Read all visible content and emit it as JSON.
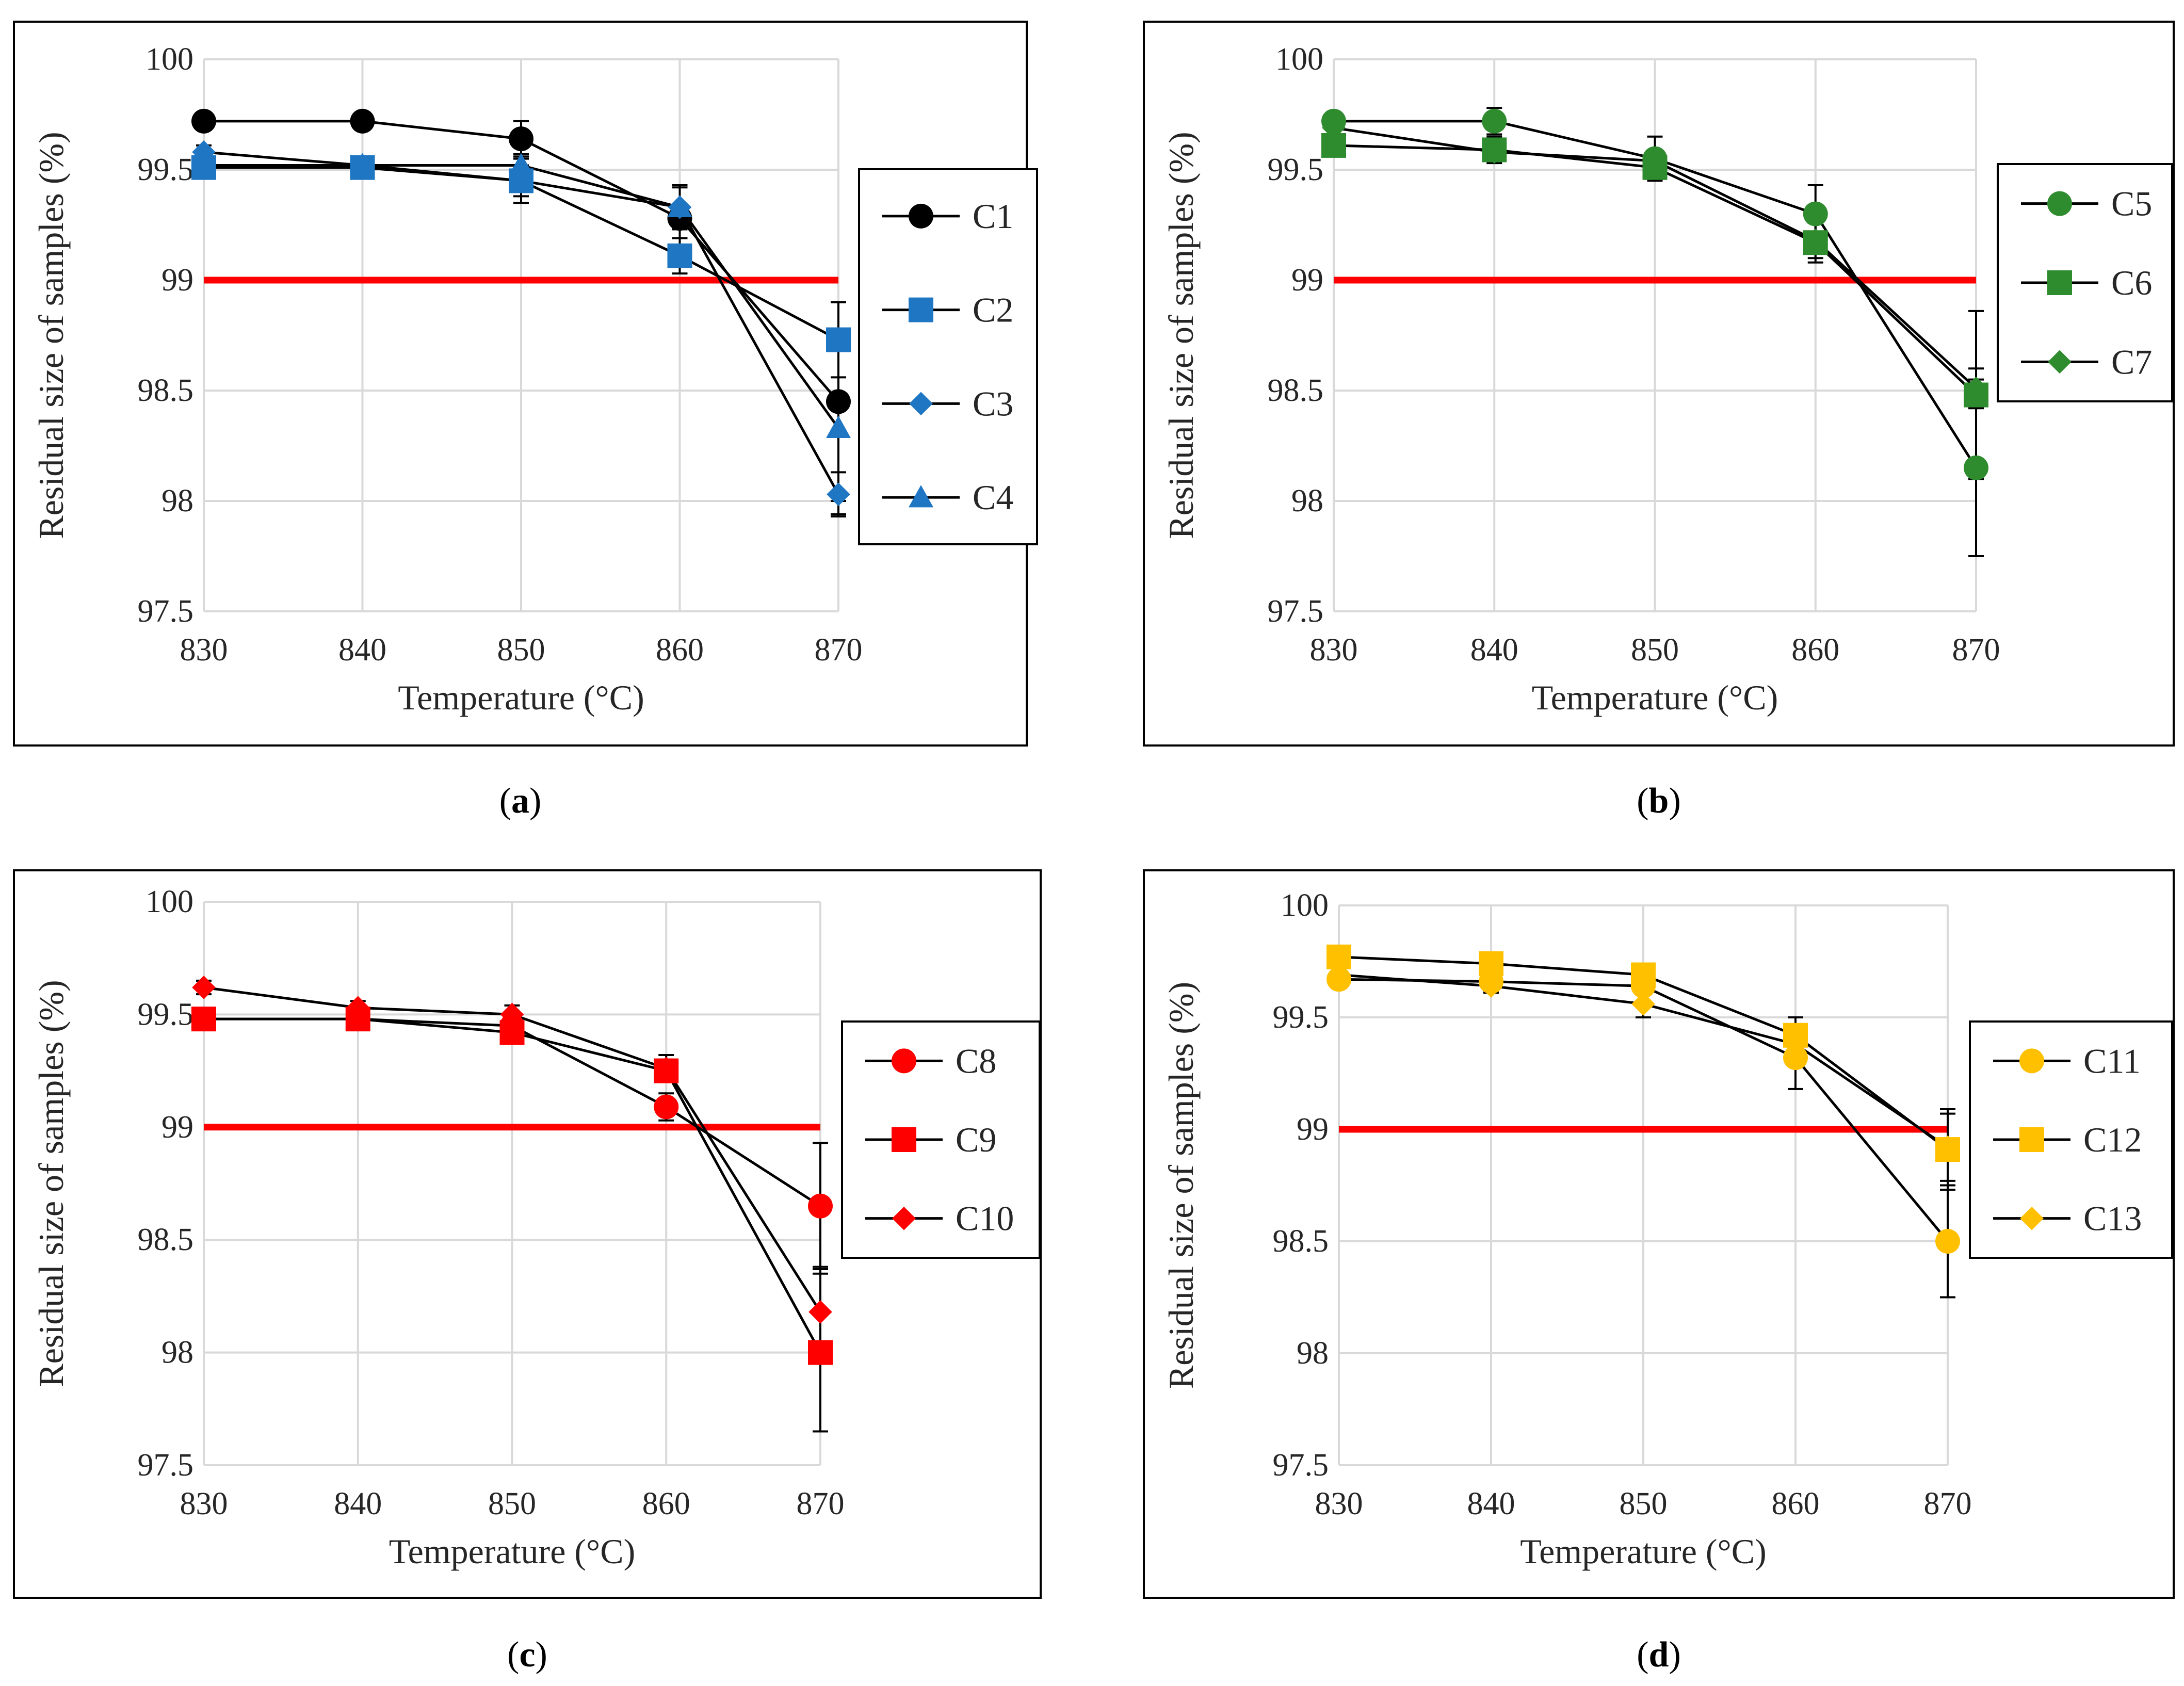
{
  "figure": {
    "panels": [
      {
        "caption_letter": "a",
        "chart_data": {
          "type": "line",
          "title": "",
          "xlabel": "Temperature (°C)",
          "ylabel": "Residual size of samples (%)",
          "x": [
            830,
            840,
            850,
            860,
            870
          ],
          "xticks": [
            "830",
            "840",
            "850",
            "860",
            "870"
          ],
          "ylim": [
            97.5,
            100
          ],
          "yticks": [
            "97.5",
            "98",
            "98.5",
            "99",
            "99.5",
            "100"
          ],
          "grid": true,
          "reference_line": {
            "y": 99,
            "color": "#ff0000"
          },
          "legend": "right",
          "series": [
            {
              "name": "C1",
              "marker": "circle",
              "color": "#000000",
              "values": [
                99.72,
                99.72,
                99.64,
                99.28,
                98.45
              ],
              "errors": [
                0.03,
                0.04,
                0.08,
                0.15,
                0.45
              ]
            },
            {
              "name": "C2",
              "marker": "square",
              "color": "#1f77c4",
              "values": [
                99.51,
                99.51,
                99.45,
                99.11,
                98.73
              ],
              "errors": [
                0.04,
                0.05,
                0.1,
                0.08,
                0.17
              ]
            },
            {
              "name": "C3",
              "marker": "diamond",
              "color": "#1f77c4",
              "values": [
                99.58,
                99.52,
                99.45,
                99.33,
                98.03
              ],
              "errors": [
                0.03,
                0.04,
                0.07,
                0.09,
                0.1
              ]
            },
            {
              "name": "C4",
              "marker": "triangle",
              "color": "#1f77c4",
              "values": [
                99.52,
                99.52,
                99.52,
                99.33,
                98.33
              ],
              "errors": [
                0.03,
                0.04,
                0.05,
                0.1,
                0.39
              ]
            }
          ]
        }
      },
      {
        "caption_letter": "b",
        "chart_data": {
          "type": "line",
          "title": "",
          "xlabel": "Temperature (°C)",
          "ylabel": "Residual size of samples (%)",
          "x": [
            830,
            840,
            850,
            860,
            870
          ],
          "xticks": [
            "830",
            "840",
            "850",
            "860",
            "870"
          ],
          "ylim": [
            97.5,
            100
          ],
          "yticks": [
            "97.5",
            "98",
            "98.5",
            "99",
            "99.5",
            "100"
          ],
          "grid": true,
          "reference_line": {
            "y": 99,
            "color": "#ff0000"
          },
          "legend": "right",
          "series": [
            {
              "name": "C5",
              "marker": "circle",
              "color": "#2e8b2e",
              "values": [
                99.72,
                99.72,
                99.55,
                99.3,
                98.15
              ],
              "errors": [
                0.04,
                0.06,
                0.1,
                0.13,
                0.4
              ]
            },
            {
              "name": "C6",
              "marker": "square",
              "color": "#2e8b2e",
              "values": [
                99.61,
                99.59,
                99.51,
                99.17,
                98.48
              ],
              "errors": [
                0.04,
                0.06,
                0.05,
                0.09,
                0.38
              ]
            },
            {
              "name": "C7",
              "marker": "diamond",
              "color": "#2e8b2e",
              "values": [
                99.69,
                99.58,
                99.54,
                99.18,
                98.51
              ],
              "errors": [
                0.03,
                0.04,
                0.05,
                0.08,
                0.09
              ]
            }
          ]
        }
      },
      {
        "caption_letter": "c",
        "chart_data": {
          "type": "line",
          "title": "",
          "xlabel": "Temperature (°C)",
          "ylabel": "Residual size of samples (%)",
          "x": [
            830,
            840,
            850,
            860,
            870
          ],
          "xticks": [
            "830",
            "840",
            "850",
            "860",
            "870"
          ],
          "ylim": [
            97.5,
            100
          ],
          "yticks": [
            "97.5",
            "98",
            "98.5",
            "99",
            "99.5",
            "100"
          ],
          "grid": true,
          "reference_line": {
            "y": 99,
            "color": "#ff0000"
          },
          "legend": "right",
          "series": [
            {
              "name": "C8",
              "marker": "circle",
              "color": "#ff0000",
              "values": [
                99.48,
                99.48,
                99.45,
                99.09,
                98.65
              ],
              "errors": [
                0.03,
                0.03,
                0.05,
                0.06,
                0.28
              ]
            },
            {
              "name": "C9",
              "marker": "square",
              "color": "#ff0000",
              "values": [
                99.48,
                99.48,
                99.42,
                99.25,
                98.0
              ],
              "errors": [
                0.03,
                0.04,
                0.04,
                0.05,
                0.35
              ]
            },
            {
              "name": "C10",
              "marker": "diamond",
              "color": "#ff0000",
              "values": [
                99.62,
                99.53,
                99.5,
                99.26,
                98.18
              ],
              "errors": [
                0.03,
                0.03,
                0.04,
                0.06,
                0.2
              ]
            }
          ]
        }
      },
      {
        "caption_letter": "d",
        "chart_data": {
          "type": "line",
          "title": "",
          "xlabel": "Temperature (°C)",
          "ylabel": "Residual size of samples (%)",
          "x": [
            830,
            840,
            850,
            860,
            870
          ],
          "xticks": [
            "830",
            "840",
            "850",
            "860",
            "870"
          ],
          "ylim": [
            97.5,
            100
          ],
          "yticks": [
            "97.5",
            "98",
            "98.5",
            "99",
            "99.5",
            "100"
          ],
          "grid": true,
          "reference_line": {
            "y": 99,
            "color": "#ff0000"
          },
          "legend": "right",
          "series": [
            {
              "name": "C11",
              "marker": "circle",
              "color": "#ffc000",
              "values": [
                99.67,
                99.66,
                99.64,
                99.32,
                98.5
              ],
              "errors": [
                0.03,
                0.04,
                0.04,
                0.14,
                0.25
              ]
            },
            {
              "name": "C12",
              "marker": "square",
              "color": "#ffc000",
              "values": [
                99.77,
                99.74,
                99.69,
                99.42,
                98.91
              ],
              "errors": [
                0.03,
                0.04,
                0.04,
                0.08,
                0.18
              ]
            },
            {
              "name": "C13",
              "marker": "diamond",
              "color": "#ffc000",
              "values": [
                99.69,
                99.64,
                99.56,
                99.38,
                98.92
              ],
              "errors": [
                0.03,
                0.03,
                0.06,
                0.09,
                0.15
              ]
            }
          ]
        }
      }
    ]
  }
}
